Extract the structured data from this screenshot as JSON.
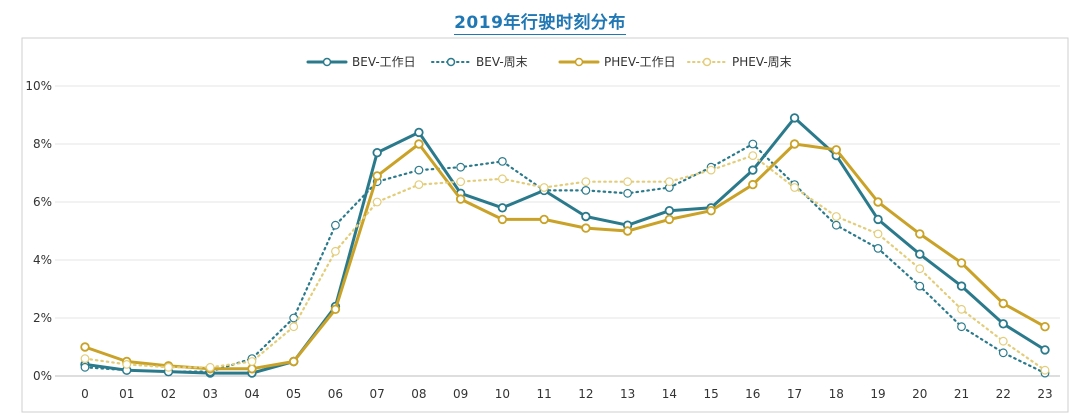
{
  "chart_data": {
    "type": "line",
    "title": "2019年行驶时刻分布",
    "xlabel": "",
    "ylabel": "",
    "categories": [
      "0",
      "01",
      "02",
      "03",
      "04",
      "05",
      "06",
      "07",
      "08",
      "09",
      "10",
      "11",
      "12",
      "13",
      "14",
      "15",
      "16",
      "17",
      "18",
      "19",
      "20",
      "21",
      "22",
      "23"
    ],
    "ylim": [
      0,
      10
    ],
    "yticks": [
      "0%",
      "2%",
      "4%",
      "6%",
      "8%",
      "10%"
    ],
    "grid": true,
    "legend_position": "top-center",
    "series": [
      {
        "name": "BEV-工作日",
        "style": "solid",
        "color": "#2a7a8c",
        "values": [
          0.4,
          0.2,
          0.15,
          0.1,
          0.1,
          0.5,
          2.4,
          7.7,
          8.4,
          6.3,
          5.8,
          6.4,
          5.5,
          5.2,
          5.7,
          5.8,
          7.1,
          8.9,
          7.6,
          5.4,
          4.2,
          3.1,
          1.8,
          0.9
        ]
      },
      {
        "name": "BEV-周末",
        "style": "dotted",
        "color": "#2a7a8c",
        "values": [
          0.3,
          0.2,
          0.15,
          0.15,
          0.6,
          2.0,
          5.2,
          6.7,
          7.1,
          7.2,
          7.4,
          6.4,
          6.4,
          6.3,
          6.5,
          7.2,
          8.0,
          6.6,
          5.2,
          4.4,
          3.1,
          1.7,
          0.8,
          0.1
        ]
      },
      {
        "name": "PHEV-工作日",
        "style": "solid",
        "color": "#c9a227",
        "values": [
          1.0,
          0.5,
          0.35,
          0.25,
          0.25,
          0.5,
          2.3,
          6.9,
          8.0,
          6.1,
          5.4,
          5.4,
          5.1,
          5.0,
          5.4,
          5.7,
          6.6,
          8.0,
          7.8,
          6.0,
          4.9,
          3.9,
          2.5,
          1.7
        ]
      },
      {
        "name": "PHEV-周末",
        "style": "dotted",
        "color": "#e3cd7a",
        "values": [
          0.6,
          0.4,
          0.3,
          0.3,
          0.5,
          1.7,
          4.3,
          6.0,
          6.6,
          6.7,
          6.8,
          6.5,
          6.7,
          6.7,
          6.7,
          7.1,
          7.6,
          6.5,
          5.5,
          4.9,
          3.7,
          2.3,
          1.2,
          0.2
        ]
      }
    ]
  }
}
